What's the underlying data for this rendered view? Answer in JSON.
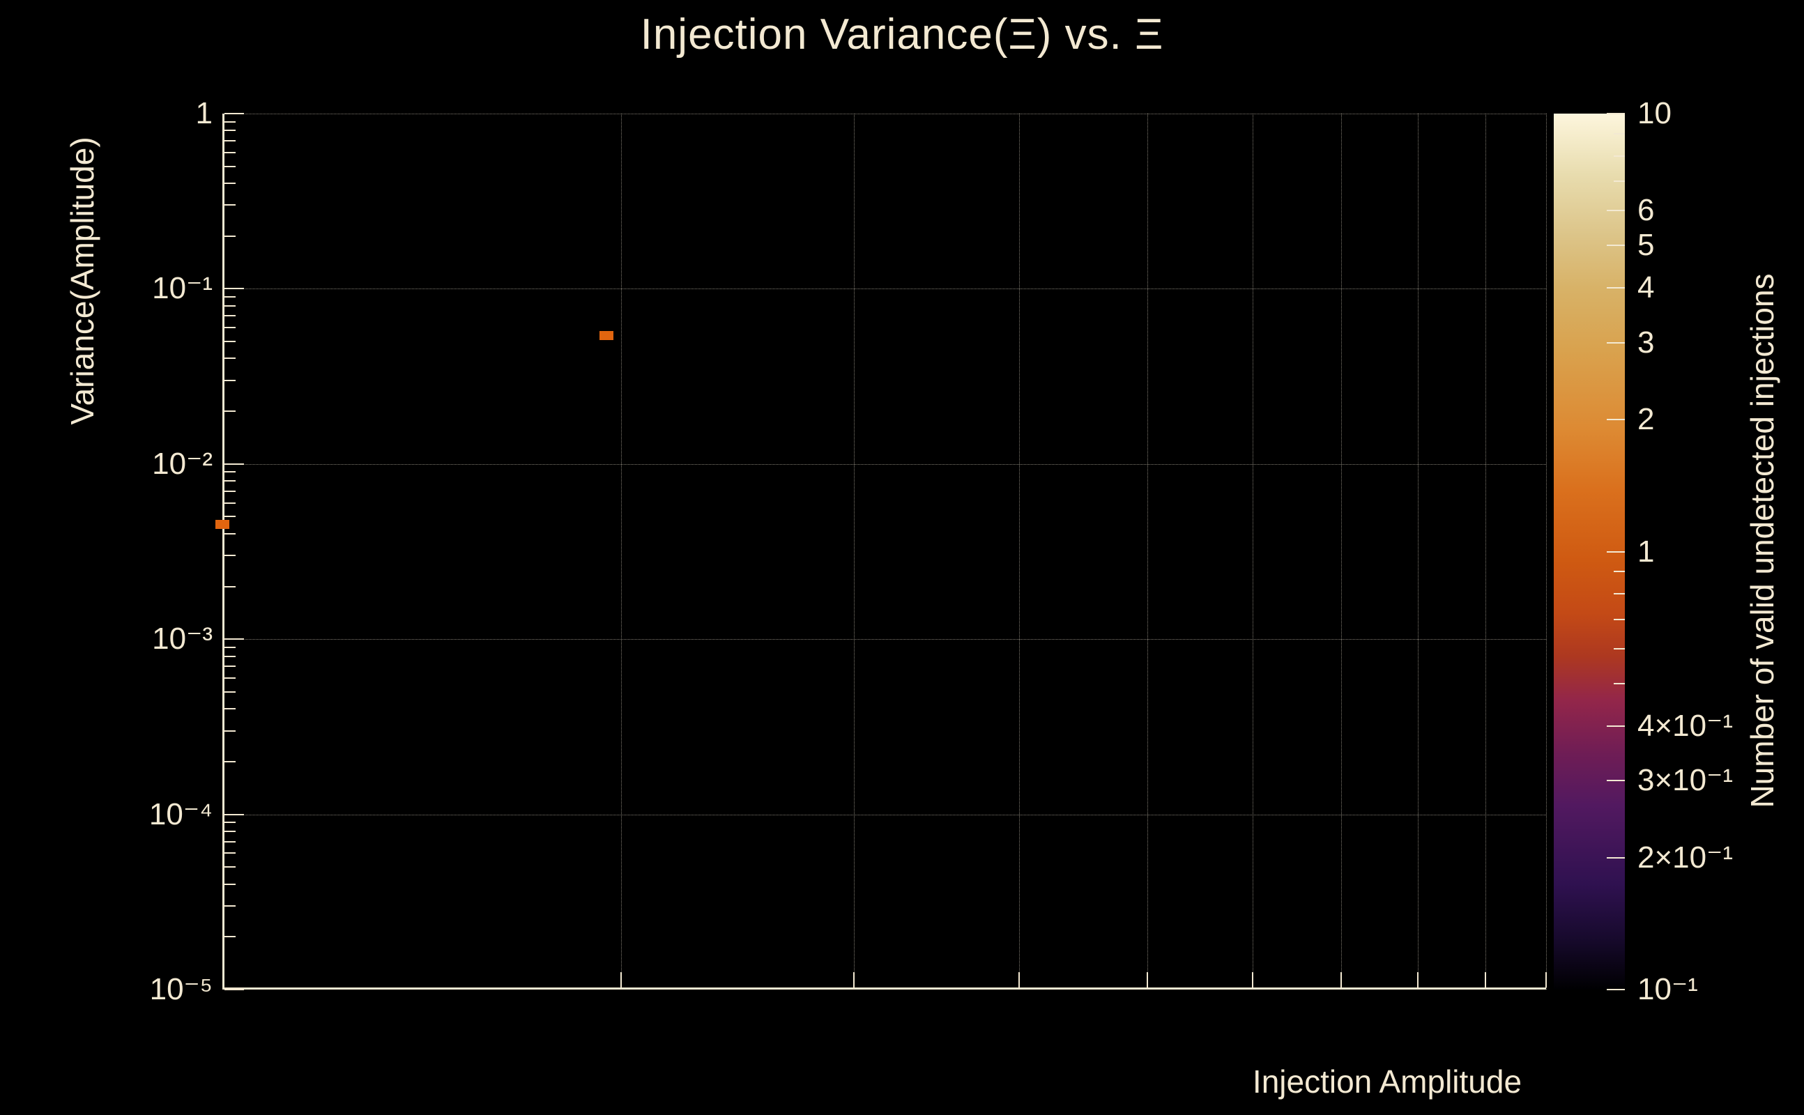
{
  "page": {
    "background": "#000000",
    "text_color": "#f3e9d2"
  },
  "chart_data": {
    "type": "heatmap",
    "title": "Injection Variance(Ξ) vs. Ξ",
    "xlabel": "Injection Amplitude",
    "ylabel": "Variance(Amplitude)",
    "x_scale": "log",
    "x_range_decade": [
      1,
      10
    ],
    "x_tick_labels": [],
    "y_scale": "log",
    "y_range": [
      1e-05,
      1
    ],
    "grid": true,
    "y_ticks": [
      {
        "value": 1,
        "label": "1"
      },
      {
        "value": 0.1,
        "label": "10⁻¹"
      },
      {
        "value": 0.01,
        "label": "10⁻²"
      },
      {
        "value": 0.001,
        "label": "10⁻³"
      },
      {
        "value": 0.0001,
        "label": "10⁻⁴"
      },
      {
        "value": 1e-05,
        "label": "10⁻⁵"
      }
    ],
    "points": [
      {
        "x_decade": 1.0,
        "y": 0.0045,
        "count": 1
      },
      {
        "x_decade": 1.95,
        "y": 0.054,
        "count": 1
      }
    ],
    "marker": {
      "color": "#e1650f",
      "width": 20,
      "height": 13
    },
    "colorbar": {
      "label": "Number of valid undetected injections",
      "scale": "log",
      "range": [
        0.1,
        10
      ],
      "ticks": [
        {
          "value": 10,
          "label": "10"
        },
        {
          "value": 6,
          "label": "6"
        },
        {
          "value": 5,
          "label": "5"
        },
        {
          "value": 4,
          "label": "4"
        },
        {
          "value": 3,
          "label": "3"
        },
        {
          "value": 2,
          "label": "2"
        },
        {
          "value": 1,
          "label": "1"
        },
        {
          "value": 0.4,
          "label": "4×10⁻¹"
        },
        {
          "value": 0.3,
          "label": "3×10⁻¹"
        },
        {
          "value": 0.2,
          "label": "2×10⁻¹"
        },
        {
          "value": 0.1,
          "label": "10⁻¹"
        }
      ],
      "minor_ticks": [
        9,
        8,
        7,
        0.9,
        0.8,
        0.7,
        0.6,
        0.5
      ],
      "gradient_stops": [
        {
          "pos": 0.0,
          "color": "#000002"
        },
        {
          "pos": 0.06,
          "color": "#180a2e"
        },
        {
          "pos": 0.12,
          "color": "#2f1150"
        },
        {
          "pos": 0.21,
          "color": "#521960"
        },
        {
          "pos": 0.27,
          "color": "#6f1d55"
        },
        {
          "pos": 0.33,
          "color": "#93264a"
        },
        {
          "pos": 0.38,
          "color": "#ad3820"
        },
        {
          "pos": 0.43,
          "color": "#c44a16"
        },
        {
          "pos": 0.49,
          "color": "#cf5a12"
        },
        {
          "pos": 0.57,
          "color": "#da701d"
        },
        {
          "pos": 0.64,
          "color": "#dd8a33"
        },
        {
          "pos": 0.73,
          "color": "#d9a24e"
        },
        {
          "pos": 0.8,
          "color": "#d8b267"
        },
        {
          "pos": 0.86,
          "color": "#dcc488"
        },
        {
          "pos": 0.93,
          "color": "#e8dcae"
        },
        {
          "pos": 1.0,
          "color": "#fdf6dd"
        }
      ]
    }
  }
}
